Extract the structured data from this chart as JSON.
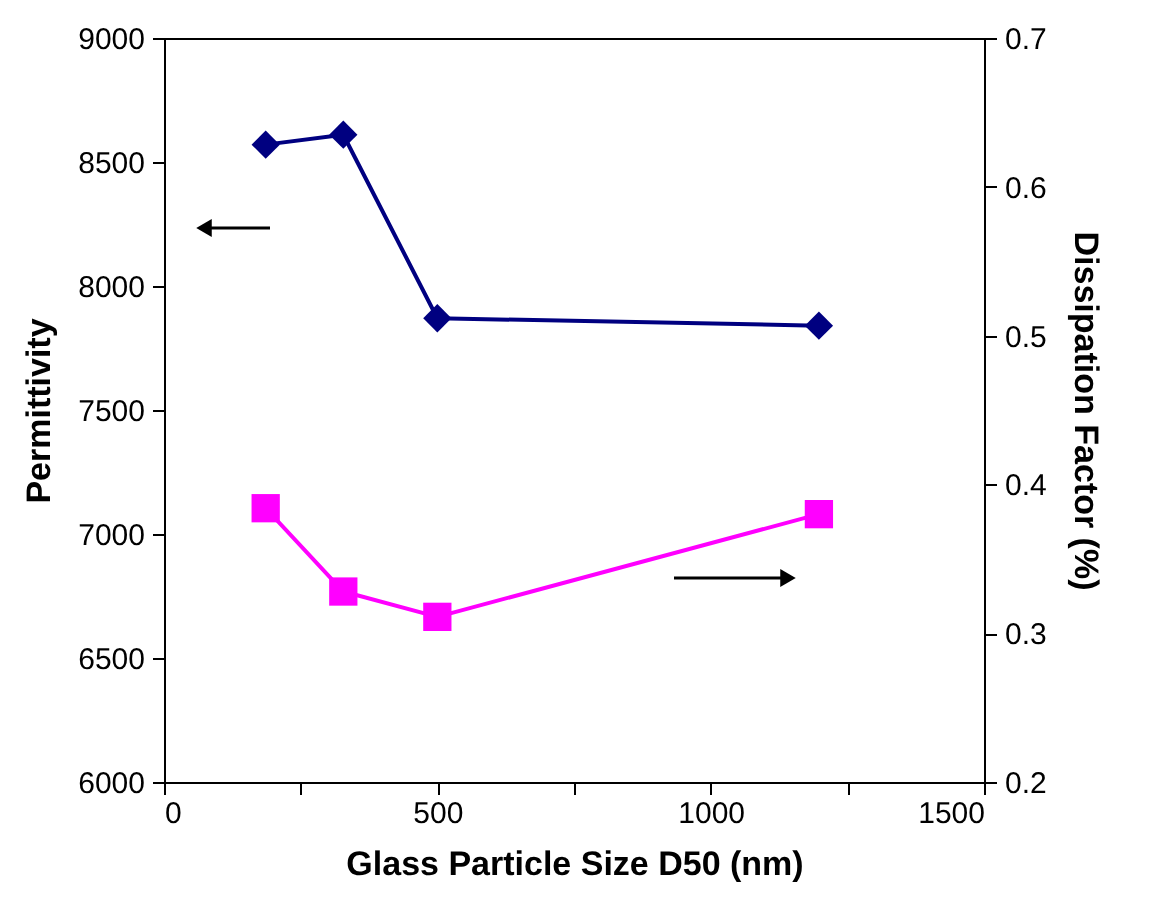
{
  "chart_data": {
    "type": "line",
    "xlabel": "Glass Particle Size D50 (nm)",
    "ylabel": "Permittivity",
    "y2label": "Dissipation Factor (%)",
    "xlim": [
      0,
      1500
    ],
    "xticks": [
      0,
      {
        "value": 250,
        "label": null
      },
      500,
      {
        "value": 750,
        "label": null
      },
      1000,
      {
        "value": 1250,
        "label": null
      },
      1500
    ],
    "ylim": [
      6000,
      9000
    ],
    "yticks": [
      6000,
      6500,
      7000,
      7500,
      8000,
      8500,
      9000
    ],
    "y2lim": [
      0.2,
      0.7
    ],
    "y2ticks": [
      0.2,
      0.3,
      0.4,
      0.5,
      0.6,
      0.7
    ],
    "grid": false,
    "series": [
      {
        "color": "#000080",
        "marker": "diamond",
        "x": [
          186,
          328,
          500,
          1198
        ],
        "values": [
          8570,
          8610,
          7870,
          7840
        ]
      },
      {
        "color": "#ff00ff",
        "marker": "square",
        "axis": "y2",
        "x": [
          186,
          328,
          500,
          1198
        ],
        "values": [
          0.384,
          0.328,
          0.311,
          0.38
        ]
      }
    ]
  }
}
